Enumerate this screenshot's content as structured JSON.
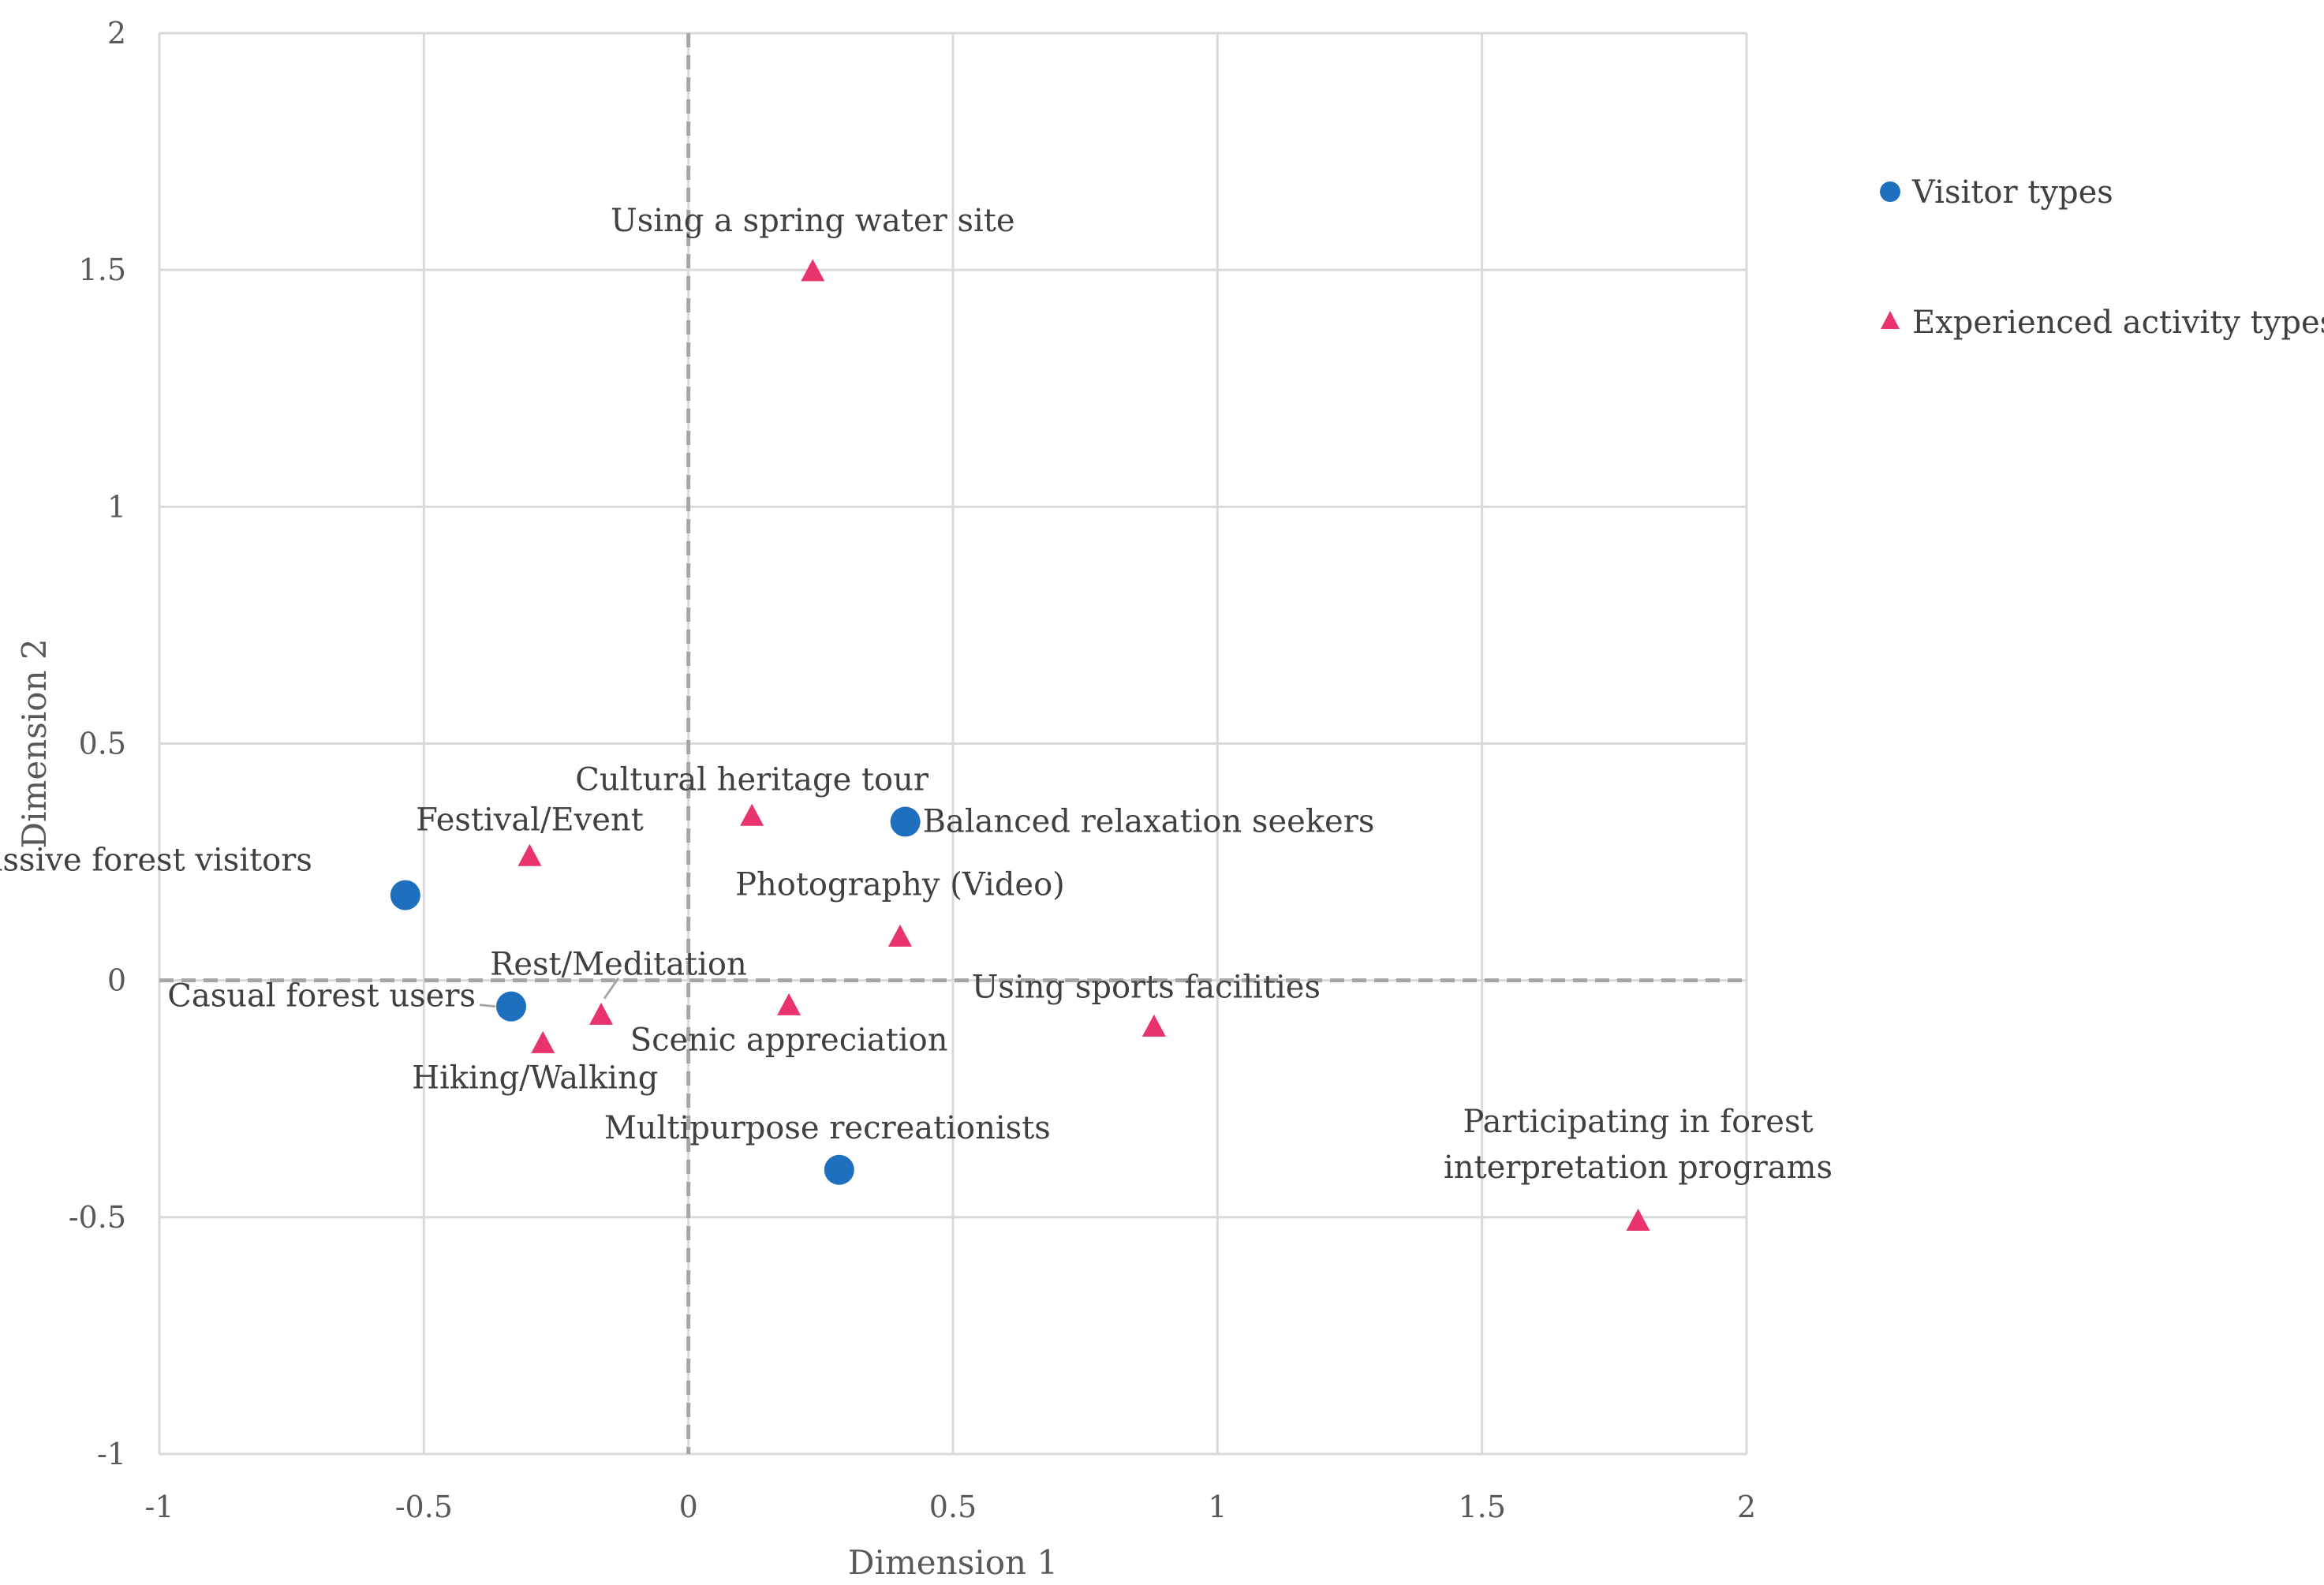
{
  "chart_data": {
    "type": "scatter",
    "title": "",
    "xlabel": "Dimension 1",
    "ylabel": "Dimension 2",
    "xlim": [
      -1,
      2
    ],
    "ylim": [
      -1,
      2
    ],
    "xticks": [
      -1,
      -0.5,
      0,
      0.5,
      1,
      1.5,
      2
    ],
    "yticks": [
      -1,
      -0.5,
      0,
      0.5,
      1,
      1.5,
      2
    ],
    "xtick_labels": [
      "-1",
      "-0.5",
      "0",
      "0.5",
      "1",
      "1.5",
      "2"
    ],
    "ytick_labels": [
      "-1",
      "-0.5",
      "0",
      "0.5",
      "1",
      "1.5",
      "2"
    ],
    "grid": true,
    "reference_lines": {
      "x": 0,
      "y": 0,
      "style": "dashed"
    },
    "legend_position": "right",
    "series": [
      {
        "name": "Visitor types",
        "marker": "circle",
        "color": "#1F6FBF",
        "points": [
          {
            "label": "Balanced relaxation seekers",
            "x": 0.41,
            "y": 0.335
          },
          {
            "label": "Passive forest visitors",
            "x": -0.535,
            "y": 0.18
          },
          {
            "label": "Casual forest users",
            "x": -0.335,
            "y": -0.055
          },
          {
            "label": "Multipurpose recreationists",
            "x": 0.285,
            "y": -0.4
          }
        ]
      },
      {
        "name": "Experienced activity types",
        "marker": "triangle",
        "color": "#E8336B",
        "points": [
          {
            "label": "Using a spring water site",
            "x": 0.235,
            "y": 1.495
          },
          {
            "label": "Cultural heritage tour",
            "x": 0.12,
            "y": 0.345
          },
          {
            "label": "Festival/Event",
            "x": -0.3,
            "y": 0.26
          },
          {
            "label": "Photography (Video)",
            "x": 0.4,
            "y": 0.09
          },
          {
            "label": "Rest/Meditation",
            "x": -0.165,
            "y": -0.075
          },
          {
            "label": "Scenic appreciation",
            "x": 0.19,
            "y": -0.055
          },
          {
            "label": "Hiking/Walking",
            "x": -0.275,
            "y": -0.135
          },
          {
            "label": "Using sports facilities",
            "x": 0.88,
            "y": -0.1
          },
          {
            "label": "Participating in forest interpretation programs",
            "label_lines": [
              "Participating in forest",
              "interpretation programs"
            ],
            "x": 1.795,
            "y": -0.51
          }
        ]
      }
    ]
  }
}
